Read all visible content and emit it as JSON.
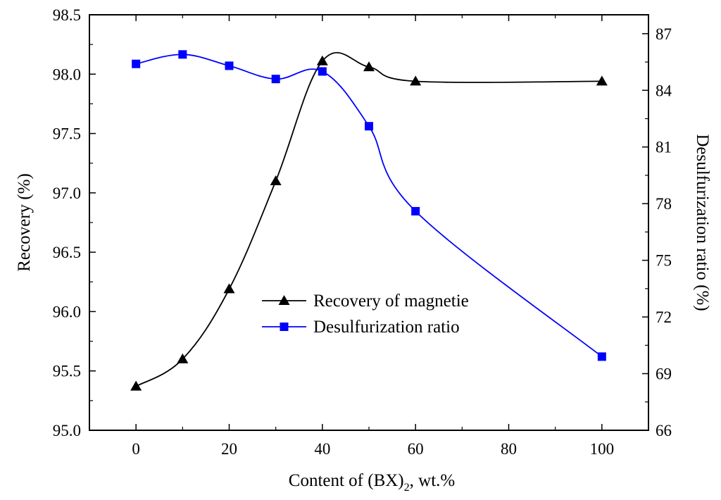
{
  "chart_data": {
    "type": "line",
    "x": [
      0,
      10,
      20,
      30,
      40,
      50,
      60,
      100
    ],
    "xlabel_main": "Content of (BX)",
    "xlabel_sub": "2",
    "xlabel_tail": ", wt.%",
    "ylabel": "Recovery (%)",
    "y2label": "Desulfurization ratio (%)",
    "xlim": [
      -10,
      110
    ],
    "ylim": [
      95.0,
      98.5
    ],
    "y2lim": [
      66,
      88
    ],
    "xticks": [
      0,
      20,
      40,
      60,
      80,
      100
    ],
    "xtick_labels": [
      "0",
      "20",
      "40",
      "60",
      "80",
      "100"
    ],
    "yticks": [
      95.0,
      95.5,
      96.0,
      96.5,
      97.0,
      97.5,
      98.0,
      98.5
    ],
    "ytick_labels": [
      "95.0",
      "95.5",
      "96.0",
      "96.5",
      "97.0",
      "97.5",
      "98.0",
      "98.5"
    ],
    "y2ticks": [
      66,
      69,
      72,
      75,
      78,
      81,
      84,
      87
    ],
    "y2tick_labels": [
      "66",
      "69",
      "72",
      "75",
      "78",
      "81",
      "84",
      "87"
    ],
    "legend_position": "center",
    "series": [
      {
        "name": "Recovery of magnetie",
        "axis": "left",
        "marker": "triangle",
        "color": "#000000",
        "values": [
          95.37,
          95.6,
          96.19,
          97.1,
          98.11,
          98.06,
          97.94,
          97.94
        ]
      },
      {
        "name": "Desulfurization ratio",
        "axis": "right",
        "marker": "square",
        "color": "#0000ff",
        "values": [
          85.4,
          85.9,
          85.3,
          84.6,
          85.0,
          82.1,
          77.6,
          69.9
        ]
      }
    ]
  }
}
